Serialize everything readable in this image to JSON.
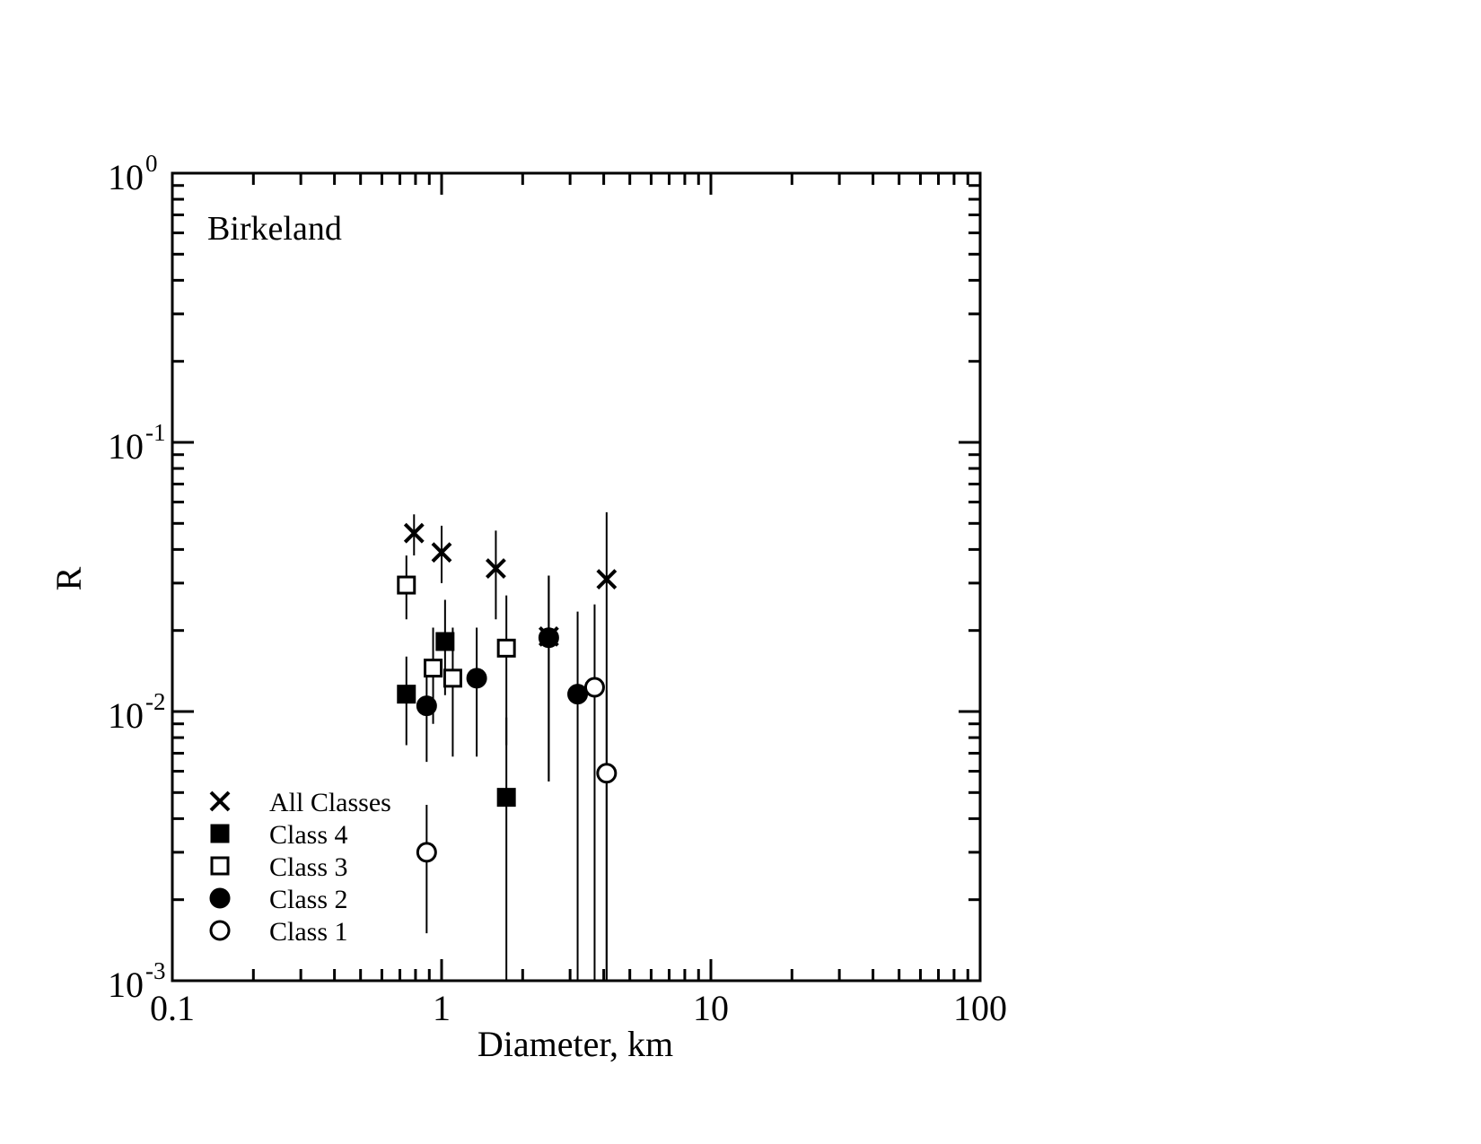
{
  "chart_data": {
    "type": "scatter",
    "title": "Birkeland",
    "xlabel": "Diameter, km",
    "ylabel": "R",
    "x_scale": "log",
    "y_scale": "log",
    "xlim": [
      0.1,
      100
    ],
    "ylim": [
      0.001,
      1
    ],
    "x_tick_labels": [
      "0.1",
      "1",
      "10",
      "100"
    ],
    "y_tick_labels": [
      {
        "base": "10",
        "exp": "0",
        "value": 1
      },
      {
        "base": "10",
        "exp": "-1",
        "value": 0.1
      },
      {
        "base": "10",
        "exp": "-2",
        "value": 0.01
      },
      {
        "base": "10",
        "exp": "-3",
        "value": 0.001
      }
    ],
    "grid": false,
    "legend_position": "bottom-left",
    "series": [
      {
        "name": "All Classes",
        "marker": "x",
        "points": [
          {
            "x": 0.79,
            "y": 0.046,
            "ylo": 0.038,
            "yhi": 0.054
          },
          {
            "x": 1.0,
            "y": 0.039,
            "ylo": 0.03,
            "yhi": 0.049
          },
          {
            "x": 1.59,
            "y": 0.034,
            "ylo": 0.022,
            "yhi": 0.047
          },
          {
            "x": 2.5,
            "y": 0.019,
            "ylo": 0.0055,
            "yhi": 0.032
          },
          {
            "x": 4.1,
            "y": 0.031,
            "ylo": 0.001,
            "yhi": 0.055
          }
        ]
      },
      {
        "name": "Class 4",
        "marker": "filled-square",
        "points": [
          {
            "x": 0.74,
            "y": 0.0116,
            "ylo": 0.0075,
            "yhi": 0.016
          },
          {
            "x": 1.03,
            "y": 0.0182,
            "ylo": 0.0115,
            "yhi": 0.026
          },
          {
            "x": 1.74,
            "y": 0.0048,
            "ylo": 0.001,
            "yhi": 0.0095
          }
        ]
      },
      {
        "name": "Class 3",
        "marker": "open-square",
        "points": [
          {
            "x": 0.74,
            "y": 0.0295,
            "ylo": 0.022,
            "yhi": 0.038
          },
          {
            "x": 0.93,
            "y": 0.0145,
            "ylo": 0.009,
            "yhi": 0.0205
          },
          {
            "x": 1.1,
            "y": 0.0133,
            "ylo": 0.0068,
            "yhi": 0.0205
          },
          {
            "x": 1.74,
            "y": 0.0172,
            "ylo": 0.0075,
            "yhi": 0.027
          }
        ]
      },
      {
        "name": "Class 2",
        "marker": "filled-circle",
        "points": [
          {
            "x": 0.88,
            "y": 0.0105,
            "ylo": 0.0065,
            "yhi": 0.0145
          },
          {
            "x": 1.35,
            "y": 0.0133,
            "ylo": 0.0068,
            "yhi": 0.0205
          },
          {
            "x": 2.5,
            "y": 0.0188,
            "ylo": 0.0055,
            "yhi": 0.032
          },
          {
            "x": 3.2,
            "y": 0.0116,
            "ylo": 0.001,
            "yhi": 0.0235
          }
        ]
      },
      {
        "name": "Class 1",
        "marker": "open-circle",
        "points": [
          {
            "x": 0.88,
            "y": 0.003,
            "ylo": 0.0015,
            "yhi": 0.0045
          },
          {
            "x": 3.7,
            "y": 0.0123,
            "ylo": 0.001,
            "yhi": 0.025
          },
          {
            "x": 4.1,
            "y": 0.0059,
            "ylo": 0.001,
            "yhi": 0.012
          }
        ]
      }
    ]
  }
}
